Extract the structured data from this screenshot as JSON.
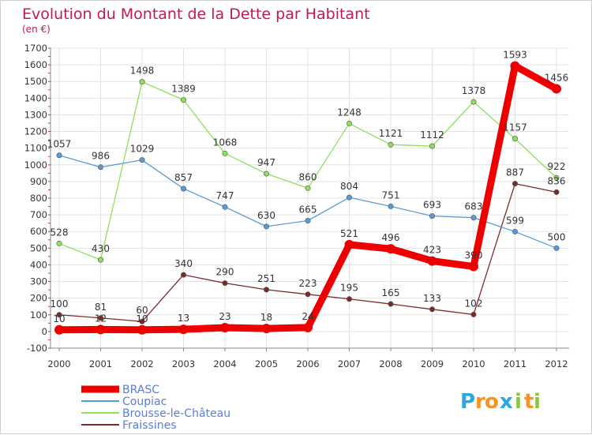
{
  "chart_data": {
    "type": "line",
    "title": "Evolution du Montant de la Dette par Habitant",
    "subtitle": "(en €)",
    "xlabel": "",
    "ylabel": "",
    "ylim": [
      -100,
      1700
    ],
    "y_ticks": [
      "-100",
      "0",
      "100",
      "200",
      "300",
      "400",
      "500",
      "600",
      "700",
      "800",
      "900",
      "1000",
      "1100",
      "1200",
      "1300",
      "1400",
      "1500",
      "1600",
      "1700"
    ],
    "x": [
      "2000",
      "2001",
      "2002",
      "2003",
      "2004",
      "2005",
      "2006",
      "2007",
      "2008",
      "2009",
      "2010",
      "2011",
      "2012"
    ],
    "grid": true,
    "legend_position": "bottom-left",
    "series": [
      {
        "name": "BRASC",
        "color": "#ee0000",
        "values": [
          10,
          12,
          10,
          13,
          23,
          18,
          24,
          521,
          496,
          423,
          390,
          1593,
          1456
        ],
        "labels": [
          "10",
          "12",
          "10",
          "13",
          "23",
          "18",
          "24",
          "521",
          "496",
          "423",
          "390",
          "1593",
          "1456"
        ]
      },
      {
        "name": "Coupiac",
        "color": "#5b9bd5",
        "values": [
          1057,
          986,
          1029,
          857,
          747,
          630,
          665,
          804,
          751,
          693,
          683,
          599,
          500
        ],
        "labels": [
          "1057",
          "986",
          "1029",
          "857",
          "747",
          "630",
          "665",
          "804",
          "751",
          "693",
          "683",
          "599",
          "500"
        ]
      },
      {
        "name": "Brousse-le-Château",
        "color": "#8ee05a",
        "values": [
          528,
          430,
          1498,
          1389,
          1068,
          947,
          860,
          1248,
          1121,
          1112,
          1378,
          1157,
          922
        ],
        "labels": [
          "528",
          "430",
          "1498",
          "1389",
          "1068",
          "947",
          "860",
          "1248",
          "1121",
          "1112",
          "1378",
          "1157",
          "922"
        ]
      },
      {
        "name": "Fraissines",
        "color": "#7b2a2a",
        "values": [
          100,
          81,
          60,
          340,
          290,
          251,
          223,
          195,
          165,
          133,
          102,
          887,
          836
        ],
        "labels": [
          "100",
          "81",
          "60",
          "340",
          "290",
          "251",
          "223",
          "195",
          "165",
          "133",
          "102",
          "887",
          "836"
        ]
      }
    ]
  },
  "branding": {
    "logo_letters": [
      "P",
      "r",
      "o",
      "x",
      "i",
      "t",
      "i"
    ],
    "logo_colors": [
      "#29a8e0",
      "#f7931e",
      "#f7931e",
      "#29a8e0",
      "#8cc63f",
      "#f7931e",
      "#8cc63f"
    ]
  }
}
